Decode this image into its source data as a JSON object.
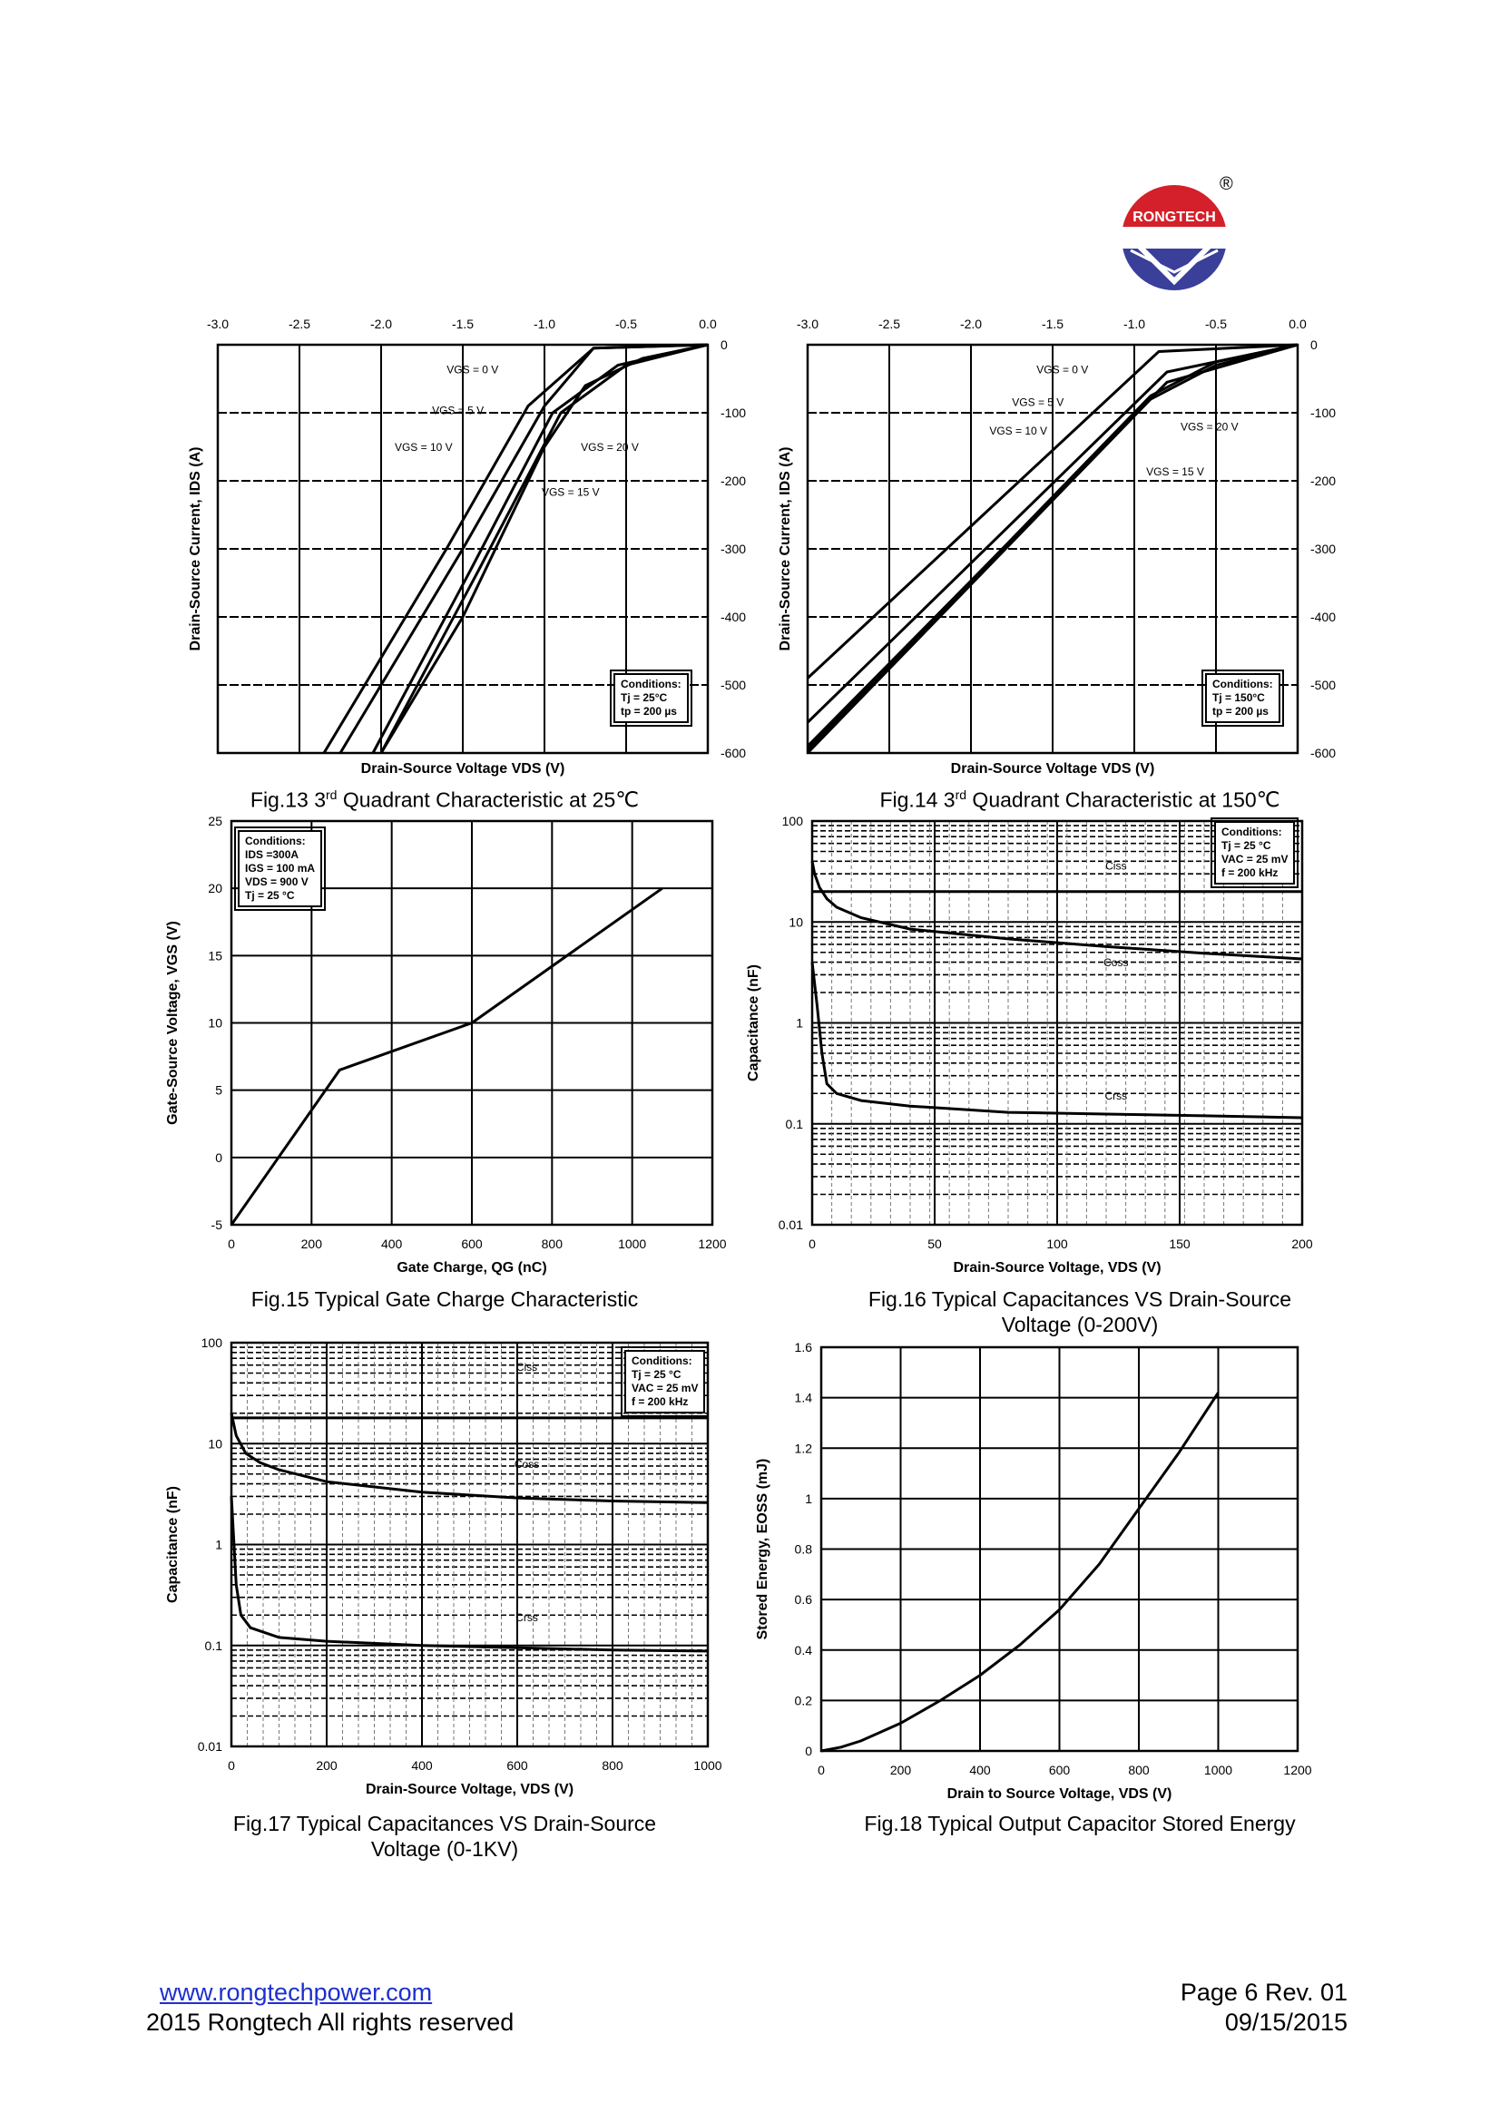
{
  "logo": {
    "text": "RONGTECH",
    "registered": "®",
    "colors": {
      "red": "#d4202a",
      "blue": "#3a3f99"
    }
  },
  "figures": {
    "fig13": {
      "caption_pre": "Fig.13  3",
      "caption_sup": "rd",
      "caption_post": " Quadrant Characteristic at 25℃"
    },
    "fig14": {
      "caption_pre": "Fig.14  3",
      "caption_sup": "rd",
      "caption_post": " Quadrant Characteristic at 150℃"
    },
    "fig15": {
      "caption": "Fig.15 Typical Gate Charge Characteristic"
    },
    "fig16": {
      "caption_line1": "Fig.16 Typical Capacitances VS Drain-Source",
      "caption_line2": "Voltage (0-200V)"
    },
    "fig17": {
      "caption_line1": "Fig.17 Typical Capacitances VS Drain-Source",
      "caption_line2": "Voltage (0-1KV)"
    },
    "fig18": {
      "caption": "Fig.18 Typical Output Capacitor Stored Energy"
    }
  },
  "conditions": {
    "fig13": [
      "Conditions:",
      "Tj = 25°C",
      "tp = 200 µs"
    ],
    "fig14": [
      "Conditions:",
      "Tj = 150°C",
      "tp = 200 µs"
    ],
    "fig15": [
      "Conditions:",
      "IDS =300A",
      "IGS = 100 mA",
      "VDS = 900 V",
      "Tj = 25 °C"
    ],
    "fig16": [
      "Conditions:",
      "Tj = 25 °C",
      "VAC = 25 mV",
      "f = 200 kHz"
    ],
    "fig17": [
      "Conditions:",
      "Tj = 25 °C",
      "VAC = 25 mV",
      "f = 200 kHz"
    ]
  },
  "chart_data": [
    {
      "id": "fig13",
      "type": "line",
      "title": "3rd Quadrant Characteristic at 25℃",
      "xlabel": "Drain-Source Voltage VDS (V)",
      "ylabel": "Drain-Source Current, IDS (A)",
      "xlim": [
        -3.0,
        0.0
      ],
      "ylim": [
        -600,
        0
      ],
      "xticks": [
        "-3.0",
        "-2.5",
        "-2.0",
        "-1.5",
        "-1.0",
        "-0.5",
        "0.0"
      ],
      "yticks": [
        "0",
        "-100",
        "-200",
        "-300",
        "-400",
        "-500",
        "-600"
      ],
      "series": [
        {
          "name": "VGS = 0 V",
          "x": [
            0.0,
            -0.7,
            -1.0,
            -1.5,
            -2.25
          ],
          "y": [
            0,
            -5,
            -90,
            -300,
            -600
          ]
        },
        {
          "name": "VGS = 5 V",
          "x": [
            0.0,
            -0.7,
            -1.1,
            -1.6,
            -2.35
          ],
          "y": [
            0,
            -5,
            -90,
            -300,
            -600
          ]
        },
        {
          "name": "VGS = 10 V",
          "x": [
            0.0,
            -0.4,
            -0.75,
            -1.0,
            -1.5,
            -2.0
          ],
          "y": [
            0,
            -20,
            -60,
            -150,
            -400,
            -600
          ]
        },
        {
          "name": "VGS = 15 V",
          "x": [
            0.0,
            -0.5,
            -0.9,
            -1.4,
            -2.0
          ],
          "y": [
            0,
            -30,
            -100,
            -330,
            -600
          ]
        },
        {
          "name": "VGS = 20 V",
          "x": [
            0.0,
            -0.55,
            -0.95,
            -1.45,
            -2.05
          ],
          "y": [
            0,
            -30,
            -100,
            -330,
            -600
          ]
        }
      ],
      "annotations": [
        "VGS = 0 V",
        "VGS = 5 V",
        "VGS = 10 V",
        "VGS = 20 V",
        "VGS = 15 V"
      ]
    },
    {
      "id": "fig14",
      "type": "line",
      "title": "3rd Quadrant Characteristic at 150℃",
      "xlabel": "Drain-Source Voltage VDS (V)",
      "ylabel": "Drain-Source Current, IDS (A)",
      "xlim": [
        -3.0,
        0.0
      ],
      "ylim": [
        -600,
        0
      ],
      "xticks": [
        "-3.0",
        "-2.5",
        "-2.0",
        "-1.5",
        "-1.0",
        "-0.5",
        "0.0"
      ],
      "yticks": [
        "0",
        "-100",
        "-200",
        "-300",
        "-400",
        "-500",
        "-600"
      ],
      "series": [
        {
          "name": "VGS = 0 V",
          "x": [
            0.0,
            -0.85,
            -3.0
          ],
          "y": [
            0,
            -10,
            -490
          ]
        },
        {
          "name": "VGS = 5 V",
          "x": [
            0.0,
            -0.8,
            -3.0
          ],
          "y": [
            0,
            -40,
            -555
          ]
        },
        {
          "name": "VGS = 10 V",
          "x": [
            0.0,
            -0.8,
            -3.0
          ],
          "y": [
            0,
            -55,
            -590
          ]
        },
        {
          "name": "VGS = 15 V",
          "x": [
            0.0,
            -0.5,
            -0.9,
            -3.0
          ],
          "y": [
            0,
            -25,
            -75,
            -595
          ]
        },
        {
          "name": "VGS = 20 V",
          "x": [
            0.0,
            -0.5,
            -0.9,
            -3.0
          ],
          "y": [
            0,
            -30,
            -80,
            -600
          ]
        }
      ],
      "annotations": [
        "VGS = 0 V",
        "VGS = 5 V",
        "VGS = 10 V",
        "VGS = 20 V",
        "VGS = 15 V"
      ]
    },
    {
      "id": "fig15",
      "type": "line",
      "title": "Typical Gate Charge Characteristic",
      "xlabel": "Gate Charge, QG (nC)",
      "ylabel": "Gate-Source Voltage, VGS (V)",
      "xlim": [
        0,
        1200
      ],
      "ylim": [
        -5,
        25
      ],
      "xticks": [
        "0",
        "200",
        "400",
        "600",
        "800",
        "1000",
        "1200"
      ],
      "yticks": [
        "25",
        "20",
        "15",
        "10",
        "5",
        "0",
        "-5"
      ],
      "series": [
        {
          "name": "VGS",
          "x": [
            0,
            270,
            600,
            1075
          ],
          "y": [
            -5,
            6.5,
            10,
            20
          ]
        }
      ]
    },
    {
      "id": "fig16",
      "type": "line",
      "yscale": "log",
      "title": "Typical Capacitances VS Drain-Source Voltage (0-200V)",
      "xlabel": "Drain-Source Voltage, VDS (V)",
      "ylabel": "Capacitance (nF)",
      "xlim": [
        0,
        200
      ],
      "ylim": [
        0.01,
        100
      ],
      "xticks": [
        "0",
        "50",
        "100",
        "150",
        "200"
      ],
      "yticks": [
        "100",
        "10",
        "1",
        "0.1",
        "0.01"
      ],
      "series": [
        {
          "name": "Ciss",
          "x": [
            0,
            200
          ],
          "y": [
            20,
            20
          ]
        },
        {
          "name": "Coss",
          "x": [
            0,
            1,
            3,
            6,
            10,
            20,
            40,
            80,
            120,
            160,
            200
          ],
          "y": [
            40,
            30,
            22,
            17,
            14,
            11,
            8.5,
            6.8,
            5.7,
            4.9,
            4.3
          ]
        },
        {
          "name": "Crss",
          "x": [
            0,
            2,
            4,
            6,
            10,
            20,
            40,
            80,
            120,
            160,
            200
          ],
          "y": [
            4,
            1.5,
            0.5,
            0.25,
            0.2,
            0.17,
            0.15,
            0.13,
            0.125,
            0.12,
            0.115
          ]
        }
      ],
      "annotations": [
        "Ciss",
        "Coss",
        "Crss"
      ]
    },
    {
      "id": "fig17",
      "type": "line",
      "yscale": "log",
      "title": "Typical Capacitances VS Drain-Source Voltage (0-1KV)",
      "xlabel": "Drain-Source Voltage, VDS (V)",
      "ylabel": "Capacitance (nF)",
      "xlim": [
        0,
        1000
      ],
      "ylim": [
        0.01,
        100
      ],
      "xticks": [
        "0",
        "200",
        "400",
        "600",
        "800",
        "1000"
      ],
      "yticks": [
        "100",
        "10",
        "1",
        "0.1",
        "0.01"
      ],
      "series": [
        {
          "name": "Ciss",
          "x": [
            0,
            1000
          ],
          "y": [
            18,
            18
          ]
        },
        {
          "name": "Coss",
          "x": [
            0,
            10,
            30,
            60,
            100,
            200,
            400,
            600,
            800,
            1000
          ],
          "y": [
            20,
            12,
            8,
            6.5,
            5.5,
            4.2,
            3.3,
            2.9,
            2.7,
            2.6
          ]
        },
        {
          "name": "Crss",
          "x": [
            0,
            10,
            20,
            40,
            100,
            200,
            400,
            600,
            800,
            1000
          ],
          "y": [
            3,
            0.4,
            0.2,
            0.15,
            0.12,
            0.11,
            0.1,
            0.095,
            0.09,
            0.088
          ]
        }
      ],
      "annotations": [
        "Ciss",
        "Coss",
        "Crss"
      ]
    },
    {
      "id": "fig18",
      "type": "line",
      "title": "Typical Output Capacitor Stored Energy",
      "xlabel": "Drain to Source Voltage, VDS (V)",
      "ylabel": "Stored Energy, EOSS (mJ)",
      "xlim": [
        0,
        1200
      ],
      "ylim": [
        0,
        1.6
      ],
      "xticks": [
        "0",
        "200",
        "400",
        "600",
        "800",
        "1000",
        "1200"
      ],
      "yticks": [
        "1.6",
        "1.4",
        "1.2",
        "1",
        "0.8",
        "0.6",
        "0.4",
        "0.2",
        "0"
      ],
      "series": [
        {
          "name": "EOSS",
          "x": [
            0,
            50,
            100,
            200,
            300,
            400,
            500,
            600,
            700,
            800,
            900,
            1000
          ],
          "y": [
            0,
            0.015,
            0.04,
            0.11,
            0.2,
            0.3,
            0.42,
            0.56,
            0.74,
            0.96,
            1.18,
            1.42
          ]
        }
      ]
    }
  ],
  "footer": {
    "website": "www.rongtechpower.com",
    "copyright": "2015 Rongtech All rights reserved",
    "page": "Page 6  Rev. 01",
    "date": "09/15/2015"
  }
}
